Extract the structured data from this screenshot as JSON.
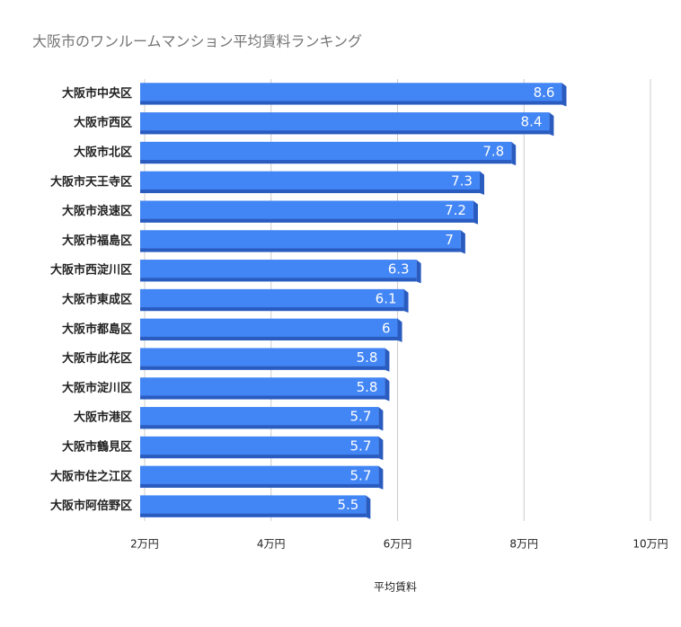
{
  "chart_data": {
    "type": "barh",
    "title": "大阪市のワンルームマンション平均賃料ランキング",
    "x_label": "平均賃料",
    "categories": [
      "大阪市中央区",
      "大阪市西区",
      "大阪市北区",
      "大阪市天王寺区",
      "大阪市浪速区",
      "大阪市福島区",
      "大阪市西淀川区",
      "大阪市東成区",
      "大阪市都島区",
      "大阪市此花区",
      "大阪市淀川区",
      "大阪市港区",
      "大阪市鶴見区",
      "大阪市住之江区",
      "大阪市阿倍野区"
    ],
    "values": [
      8.6,
      8.4,
      7.8,
      7.3,
      7.2,
      7,
      6.3,
      6.1,
      6,
      5.8,
      5.8,
      5.7,
      5.7,
      5.7,
      5.5
    ],
    "color": "#4285f4",
    "xlim": [
      2,
      10
    ],
    "xticks": [
      {
        "value": 2,
        "label": "2万円"
      },
      {
        "value": 4,
        "label": "4万円"
      },
      {
        "value": 6,
        "label": "6万円"
      },
      {
        "value": 8,
        "label": "8万円"
      },
      {
        "value": 10,
        "label": "10万円"
      }
    ],
    "grid": true
  }
}
